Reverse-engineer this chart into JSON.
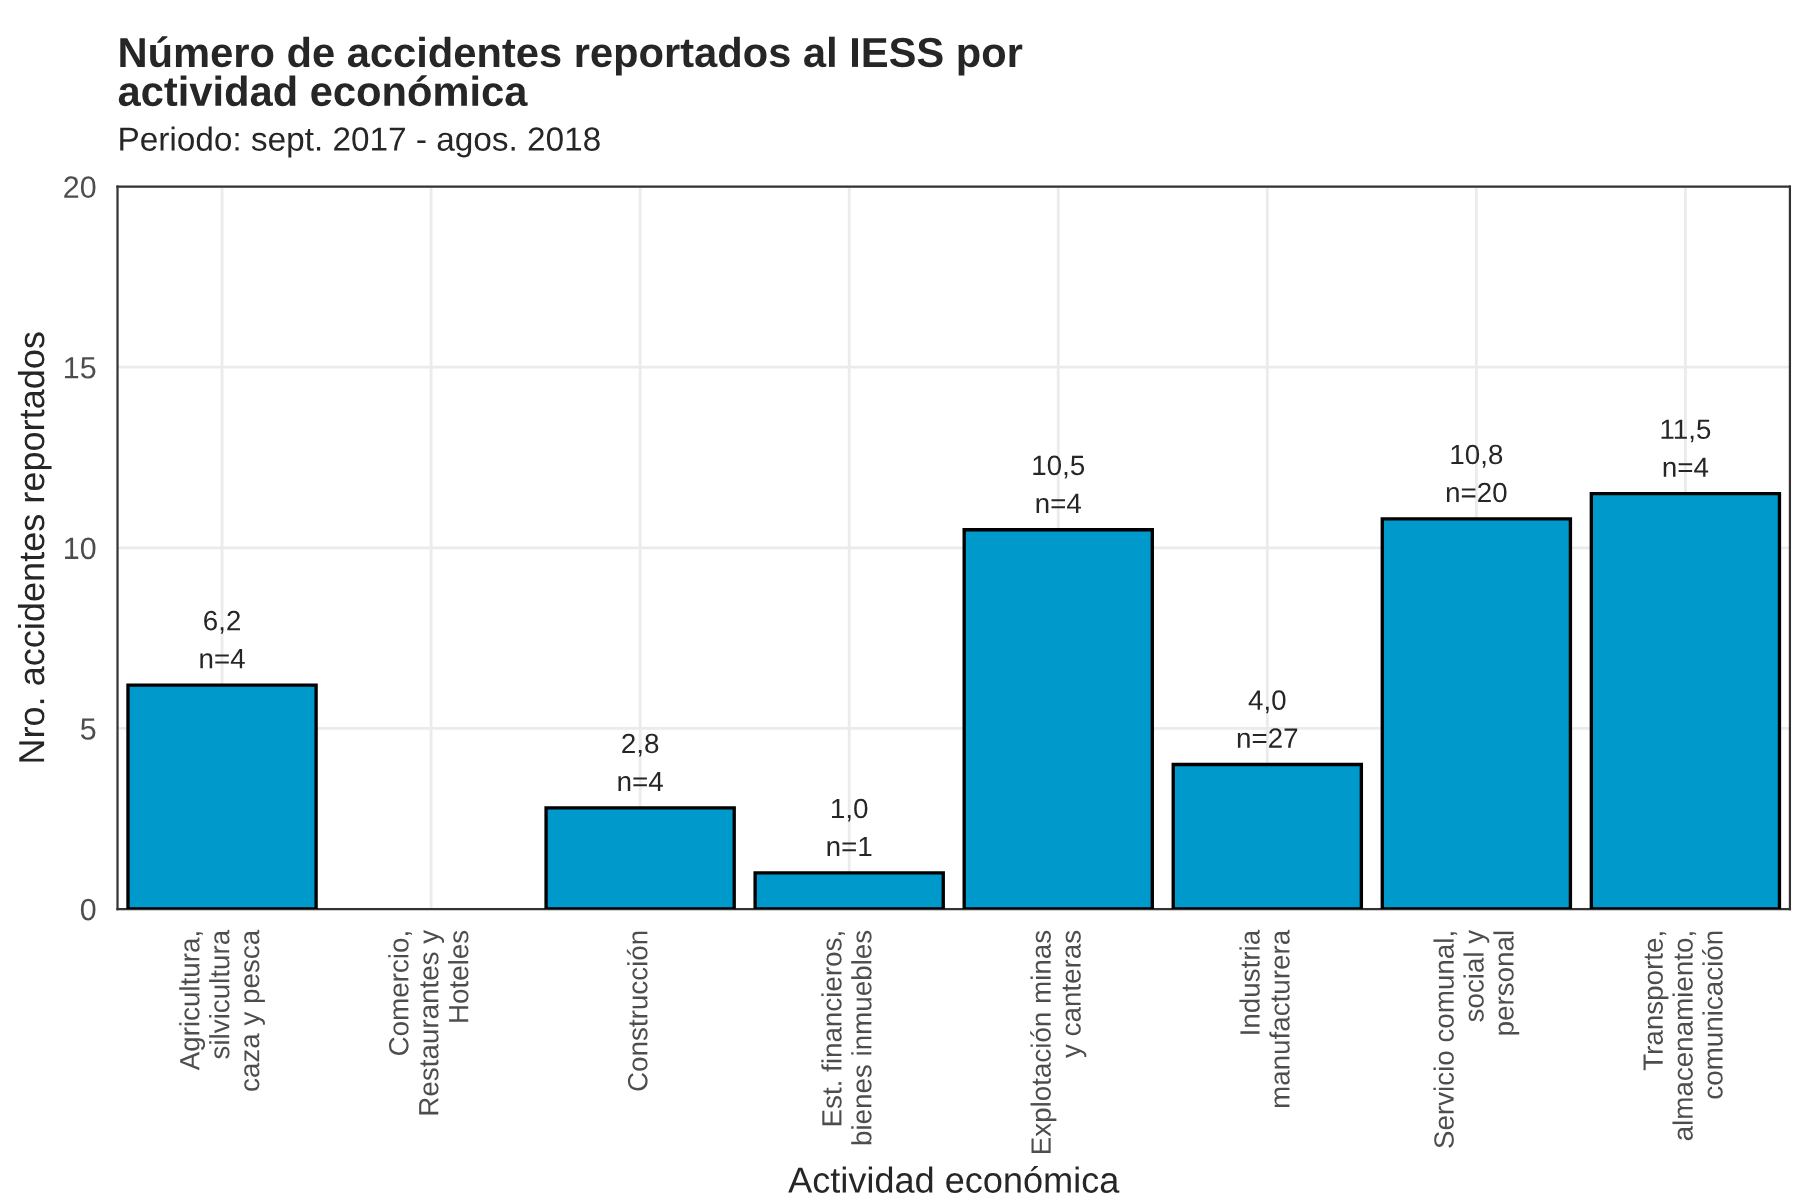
{
  "chart_data": {
    "type": "bar",
    "title": "Número de accidentes reportados al IESS por\nactividad económica",
    "subtitle": "Periodo: sept. 2017 - agos. 2018",
    "xlabel": "Actividad económica",
    "ylabel": "Nro. accidentes reportados",
    "categories": [
      "Agricultura,\nsilvicultura\ncaza y pesca",
      "Comercio,\nRestaurantes y\nHoteles",
      "Construcción",
      "Est. financieros,\nbienes inmuebles",
      "Explotación minas\ny canteras",
      "Industria\nmanufacturera",
      "Servicio comunal,\nsocial y\npersonal",
      "Transporte,\nalmacenamiento,\ncomunicación"
    ],
    "values": [
      6.2,
      null,
      2.8,
      1.0,
      10.5,
      4.0,
      10.8,
      11.5
    ],
    "value_labels": [
      "6,2\nn=4",
      null,
      "2,8\nn=4",
      "1,0\nn=1",
      "10,5\nn=4",
      "4,0\nn=27",
      "10,8\nn=20",
      "11,5\nn=4"
    ],
    "color": "#0099cc",
    "ylim": [
      0,
      20
    ],
    "yticks": [
      0,
      5,
      10,
      15,
      20
    ],
    "grid": true
  }
}
